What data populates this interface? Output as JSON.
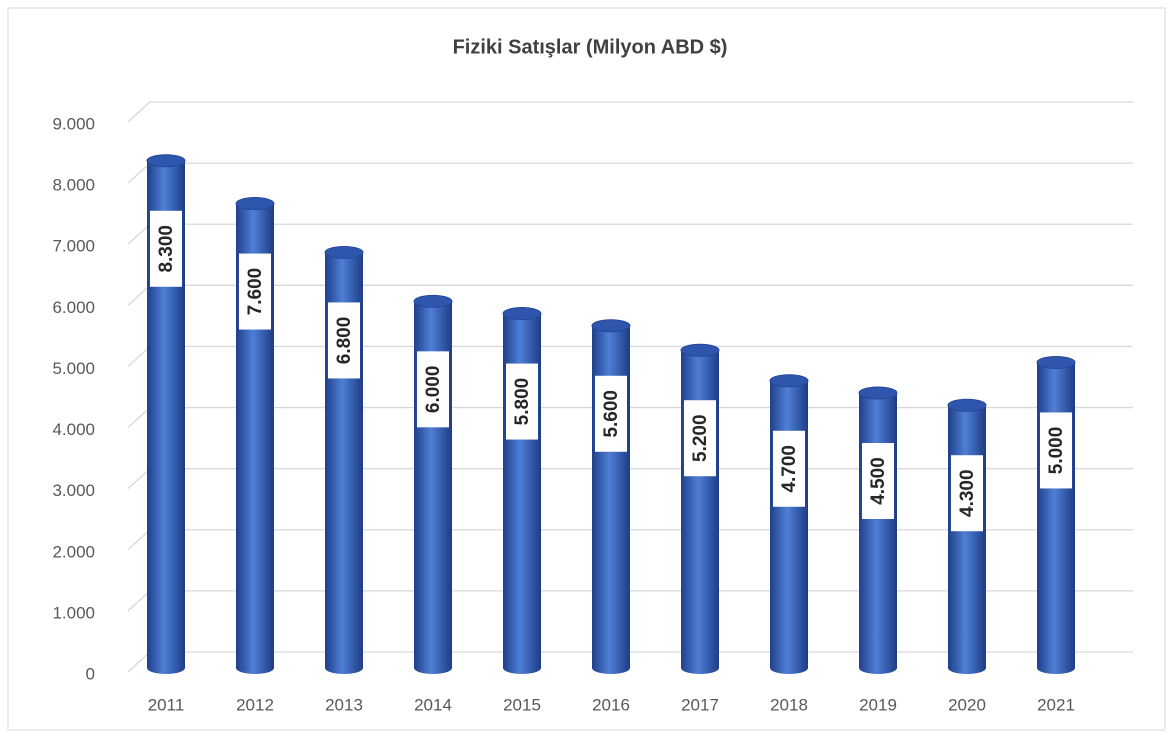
{
  "chart_data": {
    "type": "bar",
    "title": "Fiziki Satışlar (Milyon ABD $)",
    "categories": [
      "2011",
      "2012",
      "2013",
      "2014",
      "2015",
      "2016",
      "2017",
      "2018",
      "2019",
      "2020",
      "2021"
    ],
    "values": [
      8300,
      7600,
      6800,
      6000,
      5800,
      5600,
      5200,
      4700,
      4500,
      4300,
      5000
    ],
    "value_labels": [
      "8.300",
      "7.600",
      "6.800",
      "6.000",
      "5.800",
      "5.600",
      "5.200",
      "4.700",
      "4.500",
      "4.300",
      "5.000"
    ],
    "color": "#4472c4",
    "ylim": [
      0,
      9000
    ],
    "yticks": [
      0,
      {
        "value": 1000,
        "label": "1.000"
      },
      {
        "value": 2000,
        "label": "2.000"
      },
      {
        "value": 3000,
        "label": "3.000"
      },
      {
        "value": 4000,
        "label": "4.000"
      },
      {
        "value": 5000,
        "label": "5.000"
      },
      {
        "value": 6000,
        "label": "6.000"
      },
      {
        "value": 7000,
        "label": "7.000"
      },
      {
        "value": 8000,
        "label": "8.000"
      },
      {
        "value": 9000,
        "label": "9.000"
      }
    ],
    "grid": true
  }
}
